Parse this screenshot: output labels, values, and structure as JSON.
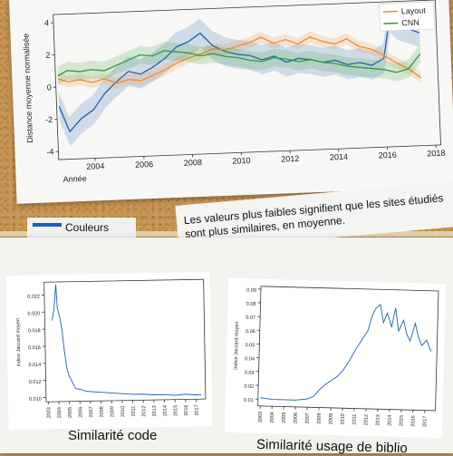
{
  "chart_data": [
    {
      "type": "line",
      "xlabel": "Année",
      "ylabel": "Distance moyenne normalisée",
      "x_ticks": [
        "2004",
        "2006",
        "2008",
        "2010",
        "2012",
        "2014",
        "2016",
        "2018"
      ],
      "y_ticks": [
        "4",
        "2",
        "0",
        "-2",
        "-4"
      ],
      "xlim": [
        2002.5,
        2018.2
      ],
      "ylim": [
        -4.5,
        4.5
      ],
      "legend": [
        "Layout",
        "CNN"
      ],
      "legend_position": "top-right",
      "series": [
        {
          "name": "Couleurs",
          "color": "#1f5fb3",
          "x": [
            2002.6,
            2003,
            2003.5,
            2004,
            2004.5,
            2005,
            2005.5,
            2006,
            2006.5,
            2007,
            2007.5,
            2008,
            2008.5,
            2009,
            2009.5,
            2010,
            2010.5,
            2011,
            2011.5,
            2012,
            2012.5,
            2013,
            2013.5,
            2014,
            2014.5,
            2015,
            2015.5,
            2016,
            2016.3,
            2016.6,
            2017,
            2017.5
          ],
          "y": [
            -1.2,
            -2.8,
            -2.0,
            -1.5,
            -0.5,
            0.2,
            0.8,
            0.6,
            1.0,
            1.5,
            2.2,
            2.5,
            3.0,
            2.2,
            1.8,
            1.6,
            1.5,
            1.2,
            1.4,
            1.0,
            1.2,
            1.1,
            0.9,
            1.0,
            0.7,
            0.8,
            0.6,
            1.0,
            3.5,
            3.0,
            2.8,
            2.5
          ]
        },
        {
          "name": "Layout",
          "color": "#f08a2c",
          "x": [
            2002.6,
            2003,
            2003.5,
            2004,
            2004.5,
            2005,
            2005.5,
            2006,
            2006.5,
            2007,
            2007.5,
            2008,
            2008.5,
            2009,
            2009.5,
            2010,
            2010.5,
            2011,
            2011.5,
            2012,
            2012.5,
            2013,
            2013.5,
            2014,
            2014.5,
            2015,
            2015.5,
            2016,
            2016.5,
            2017,
            2017.5
          ],
          "y": [
            0.5,
            0.3,
            0.4,
            0.2,
            0.4,
            0.1,
            0.3,
            0.2,
            0.5,
            0.8,
            1.2,
            1.5,
            1.7,
            2.0,
            1.9,
            2.1,
            2.3,
            2.6,
            2.2,
            2.4,
            2.1,
            2.5,
            2.2,
            2.0,
            2.3,
            1.8,
            1.6,
            1.2,
            0.7,
            0.3,
            -0.3
          ]
        },
        {
          "name": "CNN",
          "color": "#2e9d3a",
          "x": [
            2002.6,
            2003,
            2003.5,
            2004,
            2004.5,
            2005,
            2005.5,
            2006,
            2006.5,
            2007,
            2007.5,
            2008,
            2008.5,
            2009,
            2009.5,
            2010,
            2010.5,
            2011,
            2011.5,
            2012,
            2012.5,
            2013,
            2013.5,
            2014,
            2014.5,
            2015,
            2015.5,
            2016,
            2016.5,
            2017,
            2017.5
          ],
          "y": [
            0.7,
            1.0,
            0.9,
            1.0,
            0.9,
            1.2,
            1.5,
            1.8,
            1.7,
            2.0,
            1.9,
            1.8,
            1.6,
            1.7,
            1.5,
            1.4,
            1.2,
            1.1,
            1.3,
            1.2,
            1.0,
            1.1,
            0.9,
            0.8,
            0.6,
            0.5,
            0.4,
            0.3,
            0.1,
            0.3,
            1.2
          ]
        }
      ]
    },
    {
      "type": "line",
      "title": "Similarité code",
      "ylabel": "indice Jaccard moyen",
      "x_ticks": [
        "2003",
        "2004",
        "2005",
        "2006",
        "2007",
        "2008",
        "2009",
        "2010",
        "2011",
        "2012",
        "2013",
        "2014",
        "2015",
        "2016",
        "2017"
      ],
      "y_ticks": [
        "0.022",
        "0.020",
        "0.018",
        "0.016",
        "0.014",
        "0.012",
        "0.010"
      ],
      "xlim": [
        2002.8,
        2017.9
      ],
      "ylim": [
        0.0095,
        0.0235
      ],
      "series": [
        {
          "name": "",
          "color": "#1f5fb3",
          "x": [
            2003.5,
            2003.7,
            2003.9,
            2004.0,
            2004.2,
            2004.4,
            2004.6,
            2004.8,
            2005.0,
            2005.3,
            2005.6,
            2006.0,
            2006.5,
            2007,
            2008,
            2009,
            2010,
            2011,
            2012,
            2013,
            2014,
            2015,
            2016,
            2017,
            2017.5
          ],
          "y": [
            0.019,
            0.0205,
            0.0232,
            0.0205,
            0.0195,
            0.018,
            0.0155,
            0.0135,
            0.0125,
            0.0118,
            0.011,
            0.0109,
            0.0107,
            0.0106,
            0.0105,
            0.0104,
            0.0103,
            0.0102,
            0.0102,
            0.0101,
            0.0101,
            0.01,
            0.0101,
            0.01,
            0.01
          ]
        }
      ]
    },
    {
      "type": "line",
      "title": "Similarité usage de biblio",
      "ylabel": "indice Jaccard moyen",
      "x_ticks": [
        "2003",
        "2004",
        "2005",
        "2006",
        "2007",
        "2008",
        "2009",
        "2010",
        "2011",
        "2012",
        "2013",
        "2014",
        "2015",
        "2016",
        "2017"
      ],
      "y_ticks": [
        "0.09",
        "0.08",
        "0.07",
        "0.06",
        "0.05",
        "0.04",
        "0.03",
        "0.02",
        "0.01"
      ],
      "xlim": [
        2002.8,
        2017.9
      ],
      "ylim": [
        0.005,
        0.092
      ],
      "series": [
        {
          "name": "",
          "color": "#1f5fb3",
          "x": [
            2003,
            2004,
            2005,
            2006,
            2007,
            2007.5,
            2008,
            2008.5,
            2009,
            2009.5,
            2010,
            2010.5,
            2011,
            2011.5,
            2012,
            2012.3,
            2012.6,
            2013,
            2013.3,
            2013.6,
            2014,
            2014.3,
            2014.6,
            2015,
            2015.3,
            2015.6,
            2016,
            2016.3,
            2016.6,
            2017,
            2017.4
          ],
          "y": [
            0.011,
            0.01,
            0.01,
            0.01,
            0.011,
            0.013,
            0.018,
            0.022,
            0.025,
            0.028,
            0.033,
            0.04,
            0.048,
            0.055,
            0.062,
            0.072,
            0.078,
            0.081,
            0.068,
            0.075,
            0.065,
            0.079,
            0.062,
            0.07,
            0.06,
            0.055,
            0.068,
            0.058,
            0.052,
            0.056,
            0.048
          ]
        }
      ]
    }
  ],
  "legend_snippet": {
    "label": "Couleurs",
    "color": "#1f5fb3"
  },
  "note_text": "Les valeurs plus faibles signifient que les sites étudiés sont plus similaires, en moyenne."
}
